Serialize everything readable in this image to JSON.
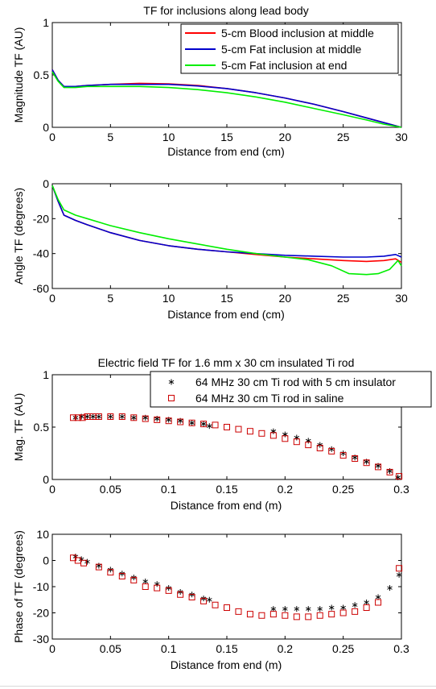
{
  "chart_data": [
    {
      "type": "line",
      "title": "TF for inclusions along lead body",
      "xlabel": "Distance from end (cm)",
      "ylabel": "Magnitude TF (AU)",
      "xlim": [
        0,
        30
      ],
      "ylim": [
        0,
        1
      ],
      "xticks": [
        "0",
        "5",
        "10",
        "15",
        "20",
        "25",
        "30"
      ],
      "yticks": [
        "0",
        "0.5",
        "1"
      ],
      "legend_position": "top-right",
      "grid": false,
      "series": [
        {
          "name": "5-cm Blood inclusion at middle",
          "color": "#ff0000",
          "x": [
            0,
            0.5,
            1,
            2,
            3,
            5,
            7.5,
            10,
            12.5,
            15,
            17.5,
            20,
            22.5,
            25,
            27,
            28.5,
            30
          ],
          "y": [
            0.55,
            0.45,
            0.39,
            0.39,
            0.4,
            0.41,
            0.42,
            0.415,
            0.4,
            0.37,
            0.33,
            0.28,
            0.22,
            0.15,
            0.09,
            0.045,
            0.0
          ]
        },
        {
          "name": "5-cm Fat inclusion at middle",
          "color": "#0000cc",
          "x": [
            0,
            0.5,
            1,
            2,
            3,
            5,
            7.5,
            10,
            12.5,
            15,
            17.5,
            20,
            22.5,
            25,
            27,
            28.5,
            30
          ],
          "y": [
            0.55,
            0.45,
            0.39,
            0.39,
            0.4,
            0.41,
            0.41,
            0.41,
            0.395,
            0.37,
            0.33,
            0.28,
            0.22,
            0.15,
            0.09,
            0.045,
            0.0
          ]
        },
        {
          "name": "5-cm Fat inclusion at end",
          "color": "#00ee00",
          "x": [
            0,
            0.5,
            1,
            2,
            3,
            5,
            7.5,
            10,
            12.5,
            15,
            17.5,
            20,
            22.5,
            25,
            27,
            28.5,
            30
          ],
          "y": [
            0.53,
            0.44,
            0.38,
            0.38,
            0.39,
            0.39,
            0.39,
            0.38,
            0.36,
            0.33,
            0.29,
            0.24,
            0.18,
            0.12,
            0.07,
            0.03,
            0.0
          ]
        }
      ]
    },
    {
      "type": "line",
      "title": "",
      "xlabel": "Distance from end (cm)",
      "ylabel": "Angle TF (degrees)",
      "xlim": [
        0,
        30
      ],
      "ylim": [
        -60,
        0
      ],
      "xticks": [
        "0",
        "5",
        "10",
        "15",
        "20",
        "25",
        "30"
      ],
      "yticks": [
        "-60",
        "-40",
        "-20",
        "0"
      ],
      "grid": false,
      "series": [
        {
          "color": "#ff0000",
          "x": [
            0,
            0.5,
            1,
            2,
            3,
            5,
            7.5,
            10,
            12.5,
            15,
            17.5,
            20,
            22.5,
            25,
            27,
            28.5,
            29.5,
            30
          ],
          "y": [
            -1,
            -10,
            -18,
            -21,
            -23.5,
            -28,
            -32.5,
            -35.5,
            -37.5,
            -39,
            -40.5,
            -42,
            -43,
            -44,
            -44.5,
            -44,
            -43,
            -45
          ]
        },
        {
          "color": "#0000cc",
          "x": [
            0,
            0.5,
            1,
            2,
            3,
            5,
            7.5,
            10,
            12.5,
            15,
            17.5,
            20,
            22.5,
            25,
            27,
            28.5,
            29.5,
            30
          ],
          "y": [
            -1,
            -10,
            -18,
            -21,
            -23.5,
            -28,
            -32.5,
            -35.5,
            -37.5,
            -39,
            -40,
            -41,
            -41.5,
            -42,
            -42,
            -41.5,
            -40.5,
            -42
          ]
        },
        {
          "color": "#00ee00",
          "x": [
            0,
            0.5,
            1,
            2,
            3,
            5,
            7.5,
            10,
            12.5,
            15,
            17.5,
            20,
            22,
            24,
            25.5,
            27,
            28,
            29,
            29.7,
            30
          ],
          "y": [
            -1,
            -9,
            -15,
            -18,
            -20,
            -24,
            -28,
            -31.5,
            -34.5,
            -37.5,
            -40,
            -42,
            -43.5,
            -47,
            -51.5,
            -52,
            -51.5,
            -49,
            -44,
            -47
          ]
        }
      ]
    },
    {
      "type": "scatter",
      "title": "Electric field TF for 1.6 mm x 30 cm insulated Ti rod",
      "xlabel": "Distance from end  (m)",
      "ylabel": "Mag.  TF (AU)",
      "xlim": [
        0,
        0.3
      ],
      "ylim": [
        0,
        1
      ],
      "xticks": [
        "0",
        "0.05",
        "0.1",
        "0.15",
        "0.2",
        "0.25",
        "0.3"
      ],
      "yticks": [
        "0",
        "0.5",
        "1"
      ],
      "legend_position": "top-right",
      "grid": false,
      "series": [
        {
          "name": "64 MHz   30 cm Ti rod with 5 cm insulator",
          "marker": "asterisk",
          "color": "#000000",
          "x": [
            0.02,
            0.025,
            0.03,
            0.035,
            0.04,
            0.05,
            0.06,
            0.07,
            0.08,
            0.09,
            0.1,
            0.11,
            0.12,
            0.13,
            0.135,
            0.19,
            0.2,
            0.21,
            0.22,
            0.23,
            0.24,
            0.25,
            0.26,
            0.27,
            0.28,
            0.29,
            0.297
          ],
          "y": [
            0.59,
            0.6,
            0.6,
            0.6,
            0.6,
            0.6,
            0.6,
            0.59,
            0.59,
            0.58,
            0.57,
            0.56,
            0.54,
            0.53,
            0.51,
            0.46,
            0.43,
            0.4,
            0.37,
            0.33,
            0.29,
            0.25,
            0.21,
            0.17,
            0.13,
            0.08,
            0.02
          ]
        },
        {
          "name": "64 MHz   30 cm Ti rod in saline",
          "marker": "square",
          "color": "#cc0000",
          "x": [
            0.018,
            0.022,
            0.026,
            0.03,
            0.035,
            0.04,
            0.05,
            0.06,
            0.07,
            0.08,
            0.09,
            0.1,
            0.11,
            0.12,
            0.13,
            0.14,
            0.15,
            0.16,
            0.17,
            0.18,
            0.19,
            0.2,
            0.21,
            0.22,
            0.23,
            0.24,
            0.25,
            0.26,
            0.27,
            0.28,
            0.29,
            0.298
          ],
          "y": [
            0.59,
            0.59,
            0.59,
            0.6,
            0.6,
            0.6,
            0.6,
            0.6,
            0.59,
            0.58,
            0.57,
            0.56,
            0.55,
            0.54,
            0.53,
            0.52,
            0.5,
            0.48,
            0.46,
            0.44,
            0.42,
            0.39,
            0.36,
            0.33,
            0.3,
            0.27,
            0.23,
            0.2,
            0.16,
            0.12,
            0.07,
            0.03
          ]
        }
      ]
    },
    {
      "type": "scatter",
      "title": "",
      "xlabel": "Distance from end (m)",
      "ylabel": "Phase of  TF  (degrees)",
      "xlim": [
        0,
        0.3
      ],
      "ylim": [
        -30,
        10
      ],
      "xticks": [
        "0",
        "0.05",
        "0.1",
        "0.15",
        "0.2",
        "0.25",
        "0.3"
      ],
      "yticks": [
        "-30",
        "-20",
        "-10",
        "0",
        "10"
      ],
      "grid": false,
      "series": [
        {
          "marker": "asterisk",
          "color": "#000000",
          "x": [
            0.02,
            0.025,
            0.03,
            0.04,
            0.05,
            0.06,
            0.07,
            0.08,
            0.09,
            0.1,
            0.11,
            0.12,
            0.13,
            0.135,
            0.19,
            0.2,
            0.21,
            0.22,
            0.23,
            0.24,
            0.25,
            0.26,
            0.27,
            0.28,
            0.29,
            0.298
          ],
          "y": [
            1.5,
            0.5,
            -0.5,
            -2,
            -3.5,
            -5,
            -6.5,
            -8,
            -9,
            -10.5,
            -12,
            -13,
            -14.5,
            -15,
            -18.5,
            -18.5,
            -18.5,
            -18.5,
            -18.5,
            -18,
            -18,
            -17,
            -16,
            -14,
            -10.5,
            -5.5
          ]
        },
        {
          "marker": "square",
          "color": "#cc0000",
          "x": [
            0.018,
            0.022,
            0.027,
            0.04,
            0.05,
            0.06,
            0.07,
            0.08,
            0.09,
            0.1,
            0.11,
            0.12,
            0.13,
            0.14,
            0.15,
            0.16,
            0.17,
            0.18,
            0.19,
            0.2,
            0.21,
            0.22,
            0.23,
            0.24,
            0.25,
            0.26,
            0.27,
            0.28,
            0.298
          ],
          "y": [
            1,
            0,
            -1,
            -2.5,
            -4.5,
            -6,
            -7.5,
            -10,
            -10.5,
            -11.5,
            -13,
            -14,
            -15.5,
            -17,
            -18,
            -19.5,
            -20.5,
            -21,
            -20.5,
            -21,
            -21.5,
            -21.5,
            -21,
            -20.5,
            -20,
            -19.5,
            -18,
            -16,
            -3
          ]
        }
      ]
    }
  ]
}
